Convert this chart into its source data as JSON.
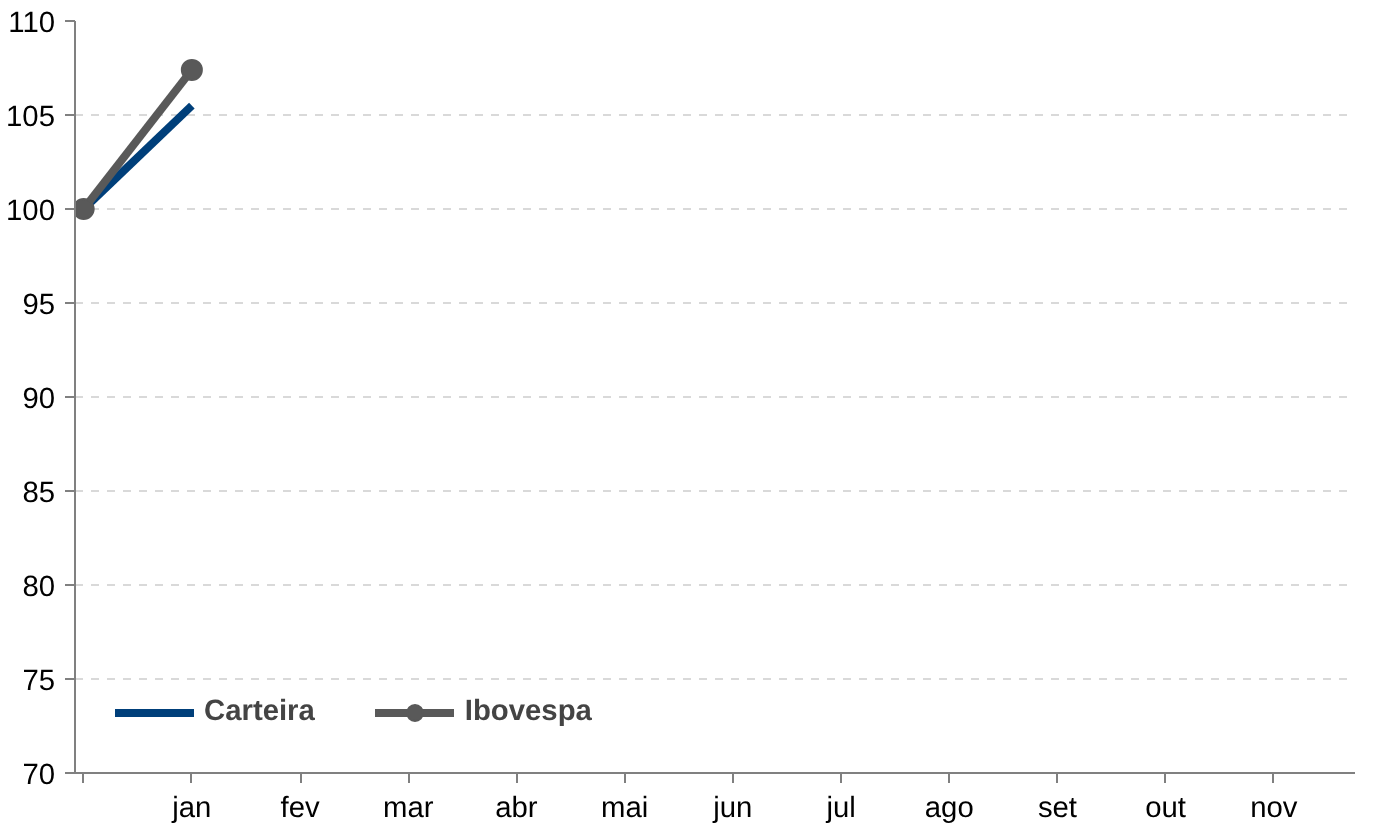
{
  "chart_data": {
    "type": "line",
    "categories": [
      null,
      "jan",
      "fev",
      "mar",
      "abr",
      "mai",
      "jun",
      "jul",
      "ago",
      "set",
      "out",
      "nov"
    ],
    "series": [
      {
        "name": "Carteira",
        "color": "#003f7a",
        "values": [
          100,
          105.5,
          null,
          null,
          null,
          null,
          null,
          null,
          null,
          null,
          null,
          null
        ],
        "marker": "none"
      },
      {
        "name": "Ibovespa",
        "color": "#595959",
        "values": [
          100,
          107.4,
          null,
          null,
          null,
          null,
          null,
          null,
          null,
          null,
          null,
          null
        ],
        "marker": "circle"
      }
    ],
    "ylim": [
      70,
      110
    ],
    "yticks": [
      70,
      75,
      80,
      85,
      90,
      95,
      100,
      105,
      110
    ],
    "grid": "y",
    "legend": "bottom left",
    "line_style": "solid"
  }
}
